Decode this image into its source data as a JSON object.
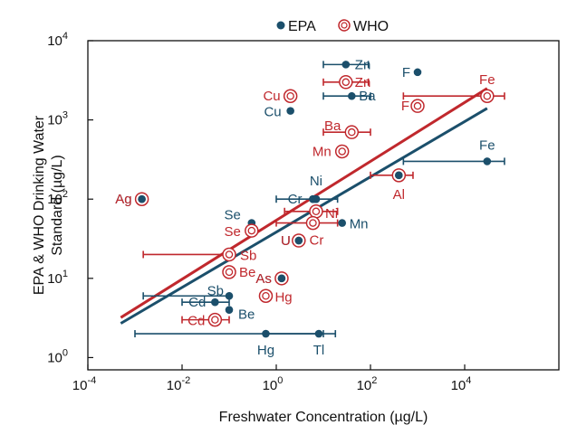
{
  "chart_data": {
    "type": "scatter",
    "title": "",
    "xlabel": "Freshwater Concentration (µg/L)",
    "ylabel": [
      "EPA & WHO Drinking Water",
      "Standard (µg/L)"
    ],
    "xscale": "log",
    "yscale": "log",
    "xlim": [
      0.0001,
      1000000
    ],
    "ylim": [
      0.7,
      10000
    ],
    "x_ticks": [
      {
        "value": 0.0001,
        "base": "10",
        "exp": "-4"
      },
      {
        "value": 0.01,
        "base": "10",
        "exp": "-2"
      },
      {
        "value": 1,
        "base": "10",
        "exp": "0"
      },
      {
        "value": 100,
        "base": "10",
        "exp": "2"
      },
      {
        "value": 10000,
        "base": "10",
        "exp": "4"
      }
    ],
    "y_ticks": [
      {
        "value": 1,
        "base": "10",
        "exp": "0"
      },
      {
        "value": 10,
        "base": "10",
        "exp": "1"
      },
      {
        "value": 100,
        "base": "10",
        "exp": "2"
      },
      {
        "value": 1000,
        "base": "10",
        "exp": "3"
      },
      {
        "value": 10000,
        "base": "10",
        "exp": "4"
      }
    ],
    "grid": false,
    "legend_position": "top-center",
    "colors": {
      "EPA": "#1b4f6b",
      "WHO": "#c0282d"
    },
    "series": [
      {
        "name": "EPA",
        "marker": "filled-circle",
        "points": [
          {
            "label": "Zn",
            "x": 30,
            "y": 5000,
            "xerr": [
              10,
              90
            ]
          },
          {
            "label": "F",
            "x": 1000,
            "y": 4000
          },
          {
            "label": "Ba",
            "x": 40,
            "y": 2000,
            "xerr": [
              10,
              100
            ]
          },
          {
            "label": "Cu",
            "x": 2,
            "y": 1300
          },
          {
            "label": "Fe",
            "x": 30000,
            "y": 300,
            "xerr": [
              500,
              70000
            ]
          },
          {
            "label": "Al",
            "x": 400,
            "y": 200
          },
          {
            "label": "Ag",
            "x": 0.0014,
            "y": 100
          },
          {
            "label": "Cr",
            "x": 6,
            "y": 100,
            "xerr": [
              1,
              20
            ]
          },
          {
            "label": "Ni",
            "x": 7,
            "y": 100
          },
          {
            "label": "Se",
            "x": 0.3,
            "y": 50
          },
          {
            "label": "Mn",
            "x": 25,
            "y": 50
          },
          {
            "label": "U",
            "x": 3,
            "y": 30
          },
          {
            "label": "As",
            "x": 1.3,
            "y": 10
          },
          {
            "label": "Sb",
            "x": 0.1,
            "y": 6,
            "xerr": [
              0.0015,
              0.1
            ]
          },
          {
            "label": "Cd",
            "x": 0.05,
            "y": 5,
            "xerr": [
              0.01,
              0.1
            ]
          },
          {
            "label": "Be",
            "x": 0.1,
            "y": 4,
            "xerr": [
              0.1,
              0.1
            ]
          },
          {
            "label": "Hg",
            "x": 0.6,
            "y": 2,
            "xerr": [
              0.001,
              10
            ]
          },
          {
            "label": "Tl",
            "x": 8,
            "y": 2,
            "xerr": [
              0.6,
              18
            ]
          }
        ]
      },
      {
        "name": "WHO",
        "marker": "ring",
        "points": [
          {
            "label": "Zn",
            "x": 30,
            "y": 3000,
            "xerr": [
              10,
              90
            ]
          },
          {
            "label": "Cu",
            "x": 2,
            "y": 2000
          },
          {
            "label": "Fe",
            "x": 30000,
            "y": 2000,
            "xerr": [
              500,
              70000
            ]
          },
          {
            "label": "F",
            "x": 1000,
            "y": 1500
          },
          {
            "label": "Ba",
            "x": 40,
            "y": 700,
            "xerr": [
              10,
              100
            ]
          },
          {
            "label": "Mn",
            "x": 25,
            "y": 400
          },
          {
            "label": "Al",
            "x": 400,
            "y": 200,
            "xerr": [
              100,
              800
            ]
          },
          {
            "label": "Ag",
            "x": 0.0014,
            "y": 100
          },
          {
            "label": "Ni",
            "x": 7,
            "y": 70,
            "xerr": [
              1.5,
              20
            ]
          },
          {
            "label": "Cr",
            "x": 6,
            "y": 50,
            "xerr": [
              1,
              20
            ]
          },
          {
            "label": "Se",
            "x": 0.3,
            "y": 40
          },
          {
            "label": "U",
            "x": 3,
            "y": 30
          },
          {
            "label": "Sb",
            "x": 0.1,
            "y": 20,
            "xerr": [
              0.0015,
              0.1
            ]
          },
          {
            "label": "Be",
            "x": 0.1,
            "y": 12
          },
          {
            "label": "As",
            "x": 1.3,
            "y": 10
          },
          {
            "label": "Hg",
            "x": 0.6,
            "y": 6
          },
          {
            "label": "Cd",
            "x": 0.05,
            "y": 3,
            "xerr": [
              0.01,
              0.1
            ]
          }
        ]
      }
    ],
    "trendlines": [
      {
        "series": "WHO",
        "x": [
          0.0005,
          30000
        ],
        "y": [
          3.2,
          2500
        ]
      },
      {
        "series": "EPA",
        "x": [
          0.0005,
          30000
        ],
        "y": [
          2.7,
          1400
        ]
      }
    ]
  }
}
